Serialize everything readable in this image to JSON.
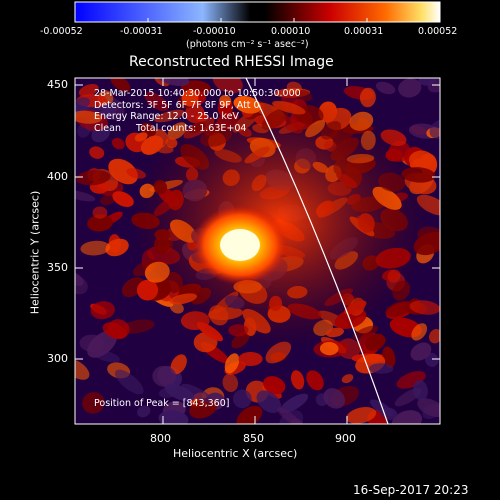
{
  "colorbar": {
    "ticks": [
      "-0.00052",
      "-0.00031",
      "-0.00010",
      "0.00010",
      "0.00031",
      "0.00052"
    ],
    "units": "(photons cm⁻² s⁻¹ asec⁻²)"
  },
  "title": "Reconstructed RHESSI Image",
  "annotation": {
    "time_range": "28-Mar-2015 10:40:30.000 to 10:50:30.000",
    "detectors": "Detectors: 3F 5F 6F 7F 8F 9F, Att 0",
    "energy": "Energy Range: 12.0 - 25.0 keV",
    "clean": "Clean     Total counts: 1.63E+04"
  },
  "peak": "Position of Peak = [843,360]",
  "axes": {
    "xlabel": "Heliocentric X (arcsec)",
    "ylabel": "Heliocentric Y (arcsec)",
    "xticks": [
      "800",
      "850",
      "900"
    ],
    "yticks": [
      "450",
      "400",
      "350",
      "300"
    ]
  },
  "footer_date": "16-Sep-2017 20:23",
  "colors": {
    "background": "#000000",
    "foreground": "#ffffff",
    "neg_min": "#0000ff",
    "pos_max": "#ffffff",
    "pos_mid": "#ff0000"
  }
}
